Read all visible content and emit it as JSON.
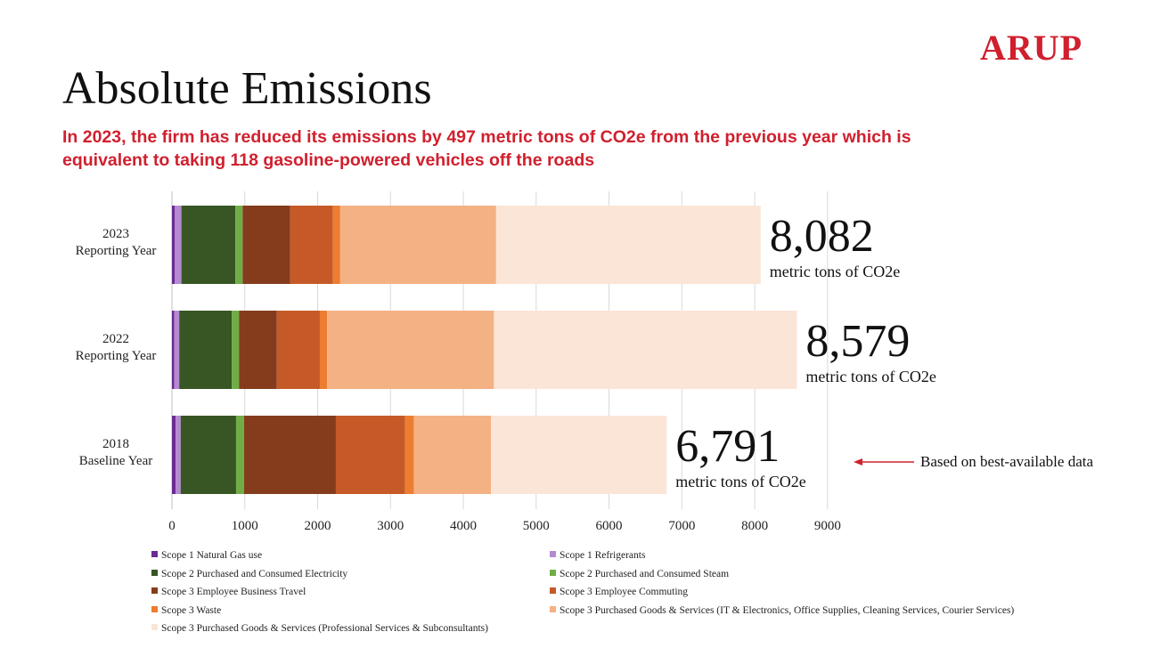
{
  "logo": "ARUP",
  "title": "Absolute Emissions",
  "subtitle_line1": "In 2023, the firm has reduced its emissions by 497 metric tons of CO2e from the previous year which is",
  "subtitle_line2": "equivalent to taking 118 gasoline-powered vehicles off the roads",
  "note": "Based on best-available data",
  "colors": {
    "accent": "#d0202e",
    "grid": "#d9d9d9"
  },
  "chart_data": {
    "type": "bar",
    "orientation": "horizontal",
    "stacked": true,
    "categories": [
      [
        "2023",
        "Reporting Year"
      ],
      [
        "2022",
        "Reporting Year"
      ],
      [
        "2018",
        "Baseline Year"
      ]
    ],
    "totals": [
      {
        "value": "8,082",
        "unit": "metric tons of CO2e"
      },
      {
        "value": "8,579",
        "unit": "metric tons of CO2e"
      },
      {
        "value": "6,791",
        "unit": "metric tons of CO2e"
      }
    ],
    "xlim": [
      0,
      9000
    ],
    "xticks": [
      "0",
      "1000",
      "2000",
      "3000",
      "4000",
      "5000",
      "6000",
      "7000",
      "8000",
      "9000"
    ],
    "grid": true,
    "series": [
      {
        "name": "Scope 1 Natural Gas use",
        "color": "#6a2c91",
        "values": [
          40,
          30,
          50
        ]
      },
      {
        "name": "Scope 1 Refrigerants",
        "color": "#b48ad0",
        "values": [
          90,
          70,
          70
        ]
      },
      {
        "name": "Scope 2 Purchased and Consumed Electricity",
        "color": "#375623",
        "values": [
          740,
          720,
          760
        ]
      },
      {
        "name": "Scope 2 Purchased and Consumed Steam",
        "color": "#70ad47",
        "values": [
          100,
          100,
          110
        ]
      },
      {
        "name": "Scope 3 Employee Business Travel",
        "color": "#843c1c",
        "values": [
          650,
          520,
          1260
        ]
      },
      {
        "name": "Scope 3 Employee Commuting",
        "color": "#c55a28",
        "values": [
          590,
          590,
          950
        ]
      },
      {
        "name": "Scope 3 Waste",
        "color": "#ed7d31",
        "values": [
          100,
          100,
          120
        ]
      },
      {
        "name": "Scope 3 Purchased Goods & Services (IT & Electronics, Office Supplies, Cleaning Services, Courier Services)",
        "color": "#f4b183",
        "values": [
          2140,
          2290,
          1060
        ]
      },
      {
        "name": "Scope 3 Purchased Goods & Services (Professional Services & Subconsultants)",
        "color": "#fbe5d6",
        "values": [
          3632,
          4159,
          2411
        ]
      }
    ]
  }
}
